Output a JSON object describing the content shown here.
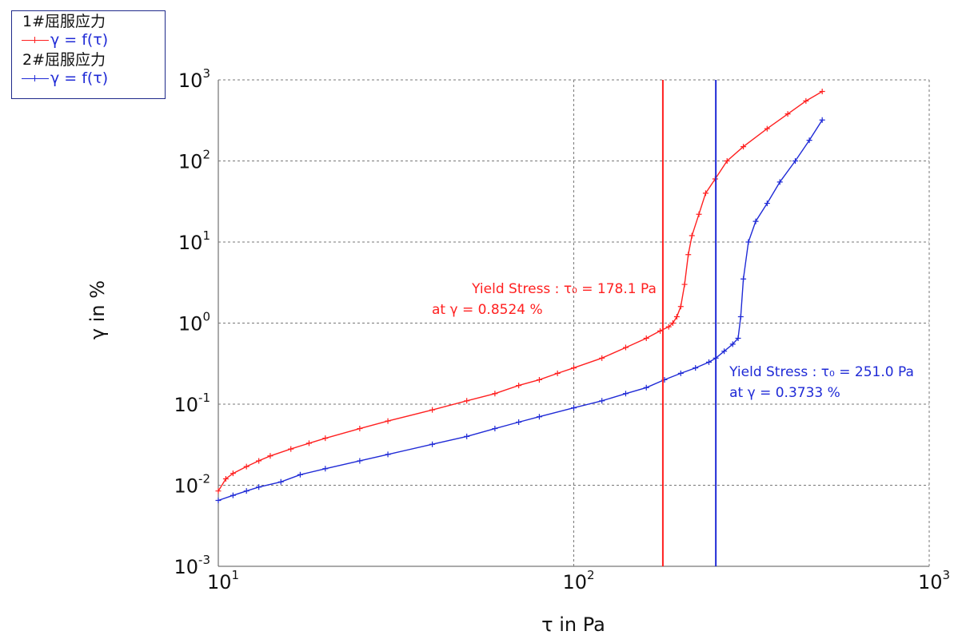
{
  "chart_data": {
    "type": "line",
    "xlabel": "τ in Pa",
    "ylabel": "γ in %",
    "x_scale": "log",
    "y_scale": "log",
    "xlim": [
      10,
      1000
    ],
    "ylim": [
      0.001,
      1000
    ],
    "grid": true,
    "legend_placement": "top-left",
    "x_ticks": [
      {
        "base": "10",
        "exp": "1",
        "value": 10
      },
      {
        "base": "10",
        "exp": "2",
        "value": 100
      },
      {
        "base": "10",
        "exp": "3",
        "value": 1000
      }
    ],
    "y_ticks": [
      {
        "base": "10",
        "exp": "3",
        "value": 1000
      },
      {
        "base": "10",
        "exp": "2",
        "value": 100
      },
      {
        "base": "10",
        "exp": "1",
        "value": 10
      },
      {
        "base": "10",
        "exp": "0",
        "value": 1
      },
      {
        "base": "10",
        "exp": "-1",
        "value": 0.1
      },
      {
        "base": "10",
        "exp": "-2",
        "value": 0.01
      },
      {
        "base": "10",
        "exp": "-3",
        "value": 0.001
      }
    ],
    "series": [
      {
        "name": "1#屈服应力",
        "legend_label": "γ = f(τ)",
        "color": "#ff2020",
        "points": [
          [
            10.0,
            0.0085
          ],
          [
            10.5,
            0.012
          ],
          [
            11,
            0.014
          ],
          [
            12,
            0.017
          ],
          [
            13,
            0.02
          ],
          [
            14,
            0.023
          ],
          [
            16,
            0.028
          ],
          [
            18,
            0.033
          ],
          [
            20,
            0.038
          ],
          [
            25,
            0.05
          ],
          [
            30,
            0.062
          ],
          [
            40,
            0.085
          ],
          [
            50,
            0.11
          ],
          [
            60,
            0.135
          ],
          [
            70,
            0.17
          ],
          [
            80,
            0.2
          ],
          [
            90,
            0.24
          ],
          [
            100,
            0.28
          ],
          [
            120,
            0.37
          ],
          [
            140,
            0.5
          ],
          [
            160,
            0.65
          ],
          [
            175,
            0.8
          ],
          [
            185,
            0.9
          ],
          [
            190,
            1.0
          ],
          [
            195,
            1.2
          ],
          [
            200,
            1.6
          ],
          [
            205,
            3.0
          ],
          [
            210,
            7
          ],
          [
            215,
            12
          ],
          [
            225,
            22
          ],
          [
            235,
            40
          ],
          [
            250,
            60
          ],
          [
            270,
            100
          ],
          [
            300,
            150
          ],
          [
            350,
            250
          ],
          [
            400,
            380
          ],
          [
            450,
            550
          ],
          [
            500,
            720
          ]
        ],
        "yield_stress": {
          "tau": 178.1,
          "gamma": 0.8524,
          "line1": "Yield Stress : τ₀  = 178.1 Pa",
          "line2": "at  γ = 0.8524 %"
        }
      },
      {
        "name": "2#屈服应力",
        "legend_label": "γ = f(τ)",
        "color": "#1f2ad6",
        "points": [
          [
            10.0,
            0.0065
          ],
          [
            11,
            0.0075
          ],
          [
            12,
            0.0085
          ],
          [
            13,
            0.0095
          ],
          [
            15,
            0.011
          ],
          [
            17,
            0.0135
          ],
          [
            20,
            0.016
          ],
          [
            25,
            0.02
          ],
          [
            30,
            0.024
          ],
          [
            40,
            0.032
          ],
          [
            50,
            0.04
          ],
          [
            60,
            0.05
          ],
          [
            70,
            0.06
          ],
          [
            80,
            0.07
          ],
          [
            100,
            0.09
          ],
          [
            120,
            0.11
          ],
          [
            140,
            0.135
          ],
          [
            160,
            0.16
          ],
          [
            180,
            0.2
          ],
          [
            200,
            0.24
          ],
          [
            220,
            0.28
          ],
          [
            240,
            0.33
          ],
          [
            251,
            0.37
          ],
          [
            265,
            0.45
          ],
          [
            280,
            0.55
          ],
          [
            290,
            0.65
          ],
          [
            295,
            1.2
          ],
          [
            300,
            3.5
          ],
          [
            310,
            10
          ],
          [
            325,
            18
          ],
          [
            350,
            30
          ],
          [
            380,
            55
          ],
          [
            420,
            100
          ],
          [
            460,
            180
          ],
          [
            500,
            320
          ]
        ],
        "yield_stress": {
          "tau": 251.0,
          "gamma": 0.3733,
          "line1": "Yield Stress : τ₀  = 251.0 Pa",
          "line2": "at  γ = 0.3733 %"
        }
      }
    ]
  }
}
